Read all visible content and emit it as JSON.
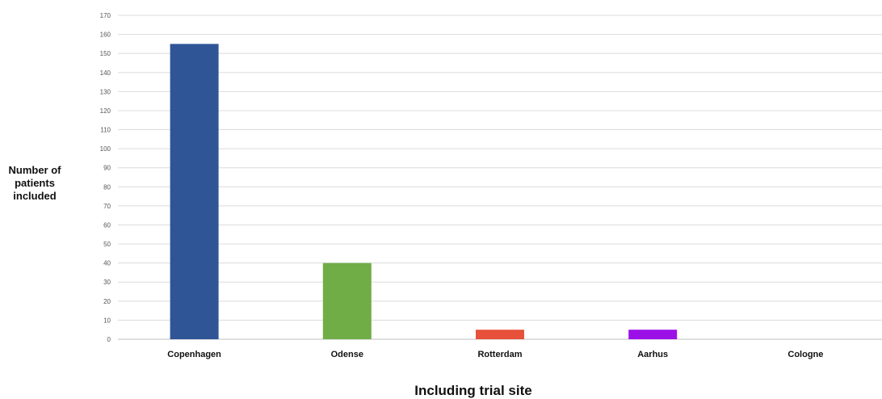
{
  "chart_data": {
    "type": "bar",
    "title": "",
    "ylabel": "Number of patients included",
    "xlabel": "Including trial site",
    "categories": [
      "Copenhagen",
      "Odense",
      "Rotterdam",
      "Aarhus",
      "Cologne"
    ],
    "values": [
      155,
      40,
      5,
      5,
      0
    ],
    "colors": [
      "#2f5597",
      "#70ad47",
      "#e7513a",
      "#9c10e8",
      "#888888"
    ],
    "ylim": [
      0,
      170
    ],
    "yticks": [
      0,
      10,
      20,
      30,
      40,
      50,
      60,
      70,
      80,
      90,
      100,
      110,
      120,
      130,
      140,
      150,
      160,
      170
    ],
    "grid": true,
    "legend": "none"
  }
}
